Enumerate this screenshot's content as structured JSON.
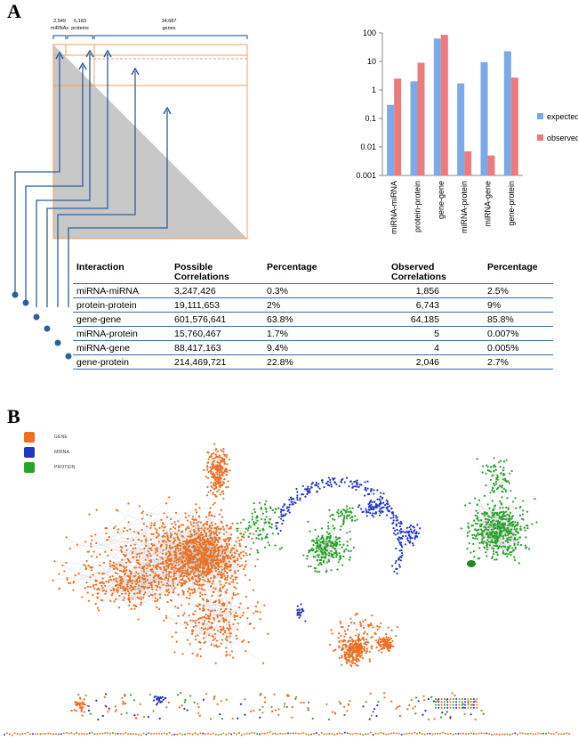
{
  "panel_a": {
    "letter": "A",
    "brackets": [
      {
        "count": "2,549",
        "name": "miRNAs"
      },
      {
        "count": "6,183",
        "name": "proteins"
      },
      {
        "count": "34,687",
        "name": "genes"
      }
    ]
  },
  "chart_data": {
    "type": "bar",
    "scale": "log",
    "categories": [
      "miRNA-miRNA",
      "protein-protein",
      "gene-gene",
      "miRNA-protein",
      "miRNA-gene",
      "gene-protein"
    ],
    "series": [
      {
        "name": "expected",
        "color": "#7aaae8",
        "values": [
          0.3,
          2,
          63.8,
          1.7,
          9.4,
          22.8
        ]
      },
      {
        "name": "observed",
        "color": "#ee7b7b",
        "values": [
          2.5,
          9,
          85.8,
          0.007,
          0.005,
          2.7
        ]
      }
    ],
    "y_ticks": [
      "0.001",
      "0.01",
      "0.1",
      "1",
      "10",
      "100"
    ],
    "ylim": [
      0.001,
      100
    ],
    "legend": "right"
  },
  "table": {
    "headers": [
      "Interaction",
      "Possible Correlations",
      "Percentage",
      "Observed Correlations",
      "Percentage"
    ],
    "rows": [
      [
        "miRNA-miRNA",
        "3,247,426",
        "0.3%",
        "1,856",
        "2.5%"
      ],
      [
        "protein-protein",
        "19,111,653",
        "2%",
        "6,743",
        "9%"
      ],
      [
        "gene-gene",
        "601,576,641",
        "63.8%",
        "64,185",
        "85.8%"
      ],
      [
        "miRNA-protein",
        "15,760,467",
        "1.7%",
        "5",
        "0.007%"
      ],
      [
        "miRNA-gene",
        "88,417,163",
        "9.4%",
        "4",
        "0.005%"
      ],
      [
        "gene-protein",
        "214,469,721",
        "22.8%",
        "2,046",
        "2.7%"
      ]
    ]
  },
  "panel_b": {
    "letter": "B",
    "legend": [
      {
        "label": "GENE",
        "color": "#ee6f1f"
      },
      {
        "label": "MIRNA",
        "color": "#2137c4"
      },
      {
        "label": "PROTEIN",
        "color": "#27a32a"
      }
    ]
  }
}
